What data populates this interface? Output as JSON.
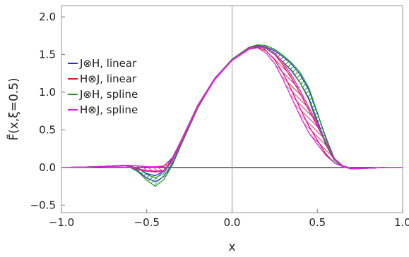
{
  "chart_data": {
    "type": "area",
    "title": "",
    "xlabel": "x",
    "ylabel": "F̃(x,ξ=0.5)",
    "xlim": [
      -1.0,
      1.0
    ],
    "ylim": [
      -0.6,
      2.15
    ],
    "xticks": [
      -1.0,
      -0.5,
      0.0,
      0.5,
      1.0
    ],
    "xtick_labels": [
      "−1.0",
      "−0.5",
      "0.0",
      "0.5",
      "1.0"
    ],
    "yticks": [
      -0.5,
      0.0,
      0.5,
      1.0,
      1.5,
      2.0
    ],
    "ytick_labels": [
      "−0.5",
      "0.0",
      "0.5",
      "1.0",
      "1.5",
      "2.0"
    ],
    "legend_position": "left",
    "grid": false,
    "series": [
      {
        "name": "J⊗H, linear",
        "color": "#2B2BCC",
        "x": [
          -1.0,
          -0.8,
          -0.62,
          -0.55,
          -0.5,
          -0.45,
          -0.4,
          -0.35,
          -0.3,
          -0.2,
          -0.1,
          0.0,
          0.1,
          0.15,
          0.2,
          0.25,
          0.3,
          0.35,
          0.4,
          0.45,
          0.5,
          0.55,
          0.6,
          0.65,
          0.7,
          0.8,
          0.9,
          1.0
        ],
        "lower": [
          0.0,
          0.01,
          0.03,
          -0.05,
          -0.14,
          -0.19,
          -0.12,
          0.05,
          0.3,
          0.8,
          1.18,
          1.43,
          1.59,
          1.62,
          1.58,
          1.5,
          1.4,
          1.28,
          1.12,
          0.92,
          0.62,
          0.32,
          0.09,
          0.01,
          -0.02,
          -0.01,
          0.0,
          0.0
        ],
        "upper": [
          0.0,
          0.01,
          0.03,
          -0.01,
          -0.08,
          -0.11,
          -0.05,
          0.12,
          0.35,
          0.83,
          1.19,
          1.43,
          1.59,
          1.62,
          1.6,
          1.55,
          1.47,
          1.37,
          1.23,
          1.03,
          0.72,
          0.4,
          0.12,
          0.02,
          -0.01,
          -0.01,
          0.0,
          0.0
        ]
      },
      {
        "name": "H⊗J, linear",
        "color": "#CC1E1E",
        "x": [
          -1.0,
          -0.8,
          -0.62,
          -0.55,
          -0.5,
          -0.45,
          -0.4,
          -0.35,
          -0.3,
          -0.2,
          -0.1,
          0.0,
          0.1,
          0.15,
          0.2,
          0.25,
          0.3,
          0.35,
          0.4,
          0.45,
          0.5,
          0.55,
          0.6,
          0.65,
          0.7,
          0.8,
          0.9,
          1.0
        ],
        "lower": [
          0.0,
          0.01,
          0.02,
          -0.02,
          -0.04,
          -0.05,
          -0.04,
          0.1,
          0.33,
          0.82,
          1.18,
          1.43,
          1.58,
          1.6,
          1.55,
          1.43,
          1.25,
          1.02,
          0.78,
          0.55,
          0.36,
          0.18,
          0.06,
          0.01,
          -0.02,
          -0.01,
          0.0,
          0.0
        ],
        "upper": [
          0.0,
          0.01,
          0.03,
          0.02,
          0.01,
          0.0,
          0.01,
          0.13,
          0.35,
          0.83,
          1.19,
          1.43,
          1.59,
          1.61,
          1.58,
          1.5,
          1.36,
          1.18,
          0.98,
          0.76,
          0.55,
          0.32,
          0.12,
          0.02,
          -0.01,
          -0.01,
          0.0,
          0.0
        ]
      },
      {
        "name": "J⊗H, spline",
        "color": "#1E9E1E",
        "x": [
          -1.0,
          -0.8,
          -0.62,
          -0.55,
          -0.5,
          -0.45,
          -0.4,
          -0.35,
          -0.3,
          -0.2,
          -0.1,
          0.0,
          0.1,
          0.15,
          0.2,
          0.25,
          0.3,
          0.35,
          0.4,
          0.45,
          0.5,
          0.55,
          0.6,
          0.65,
          0.7,
          0.8,
          0.9,
          1.0
        ],
        "lower": [
          0.0,
          0.01,
          0.03,
          -0.06,
          -0.17,
          -0.25,
          -0.16,
          0.03,
          0.29,
          0.79,
          1.18,
          1.43,
          1.58,
          1.61,
          1.58,
          1.5,
          1.4,
          1.29,
          1.12,
          0.9,
          0.58,
          0.3,
          0.09,
          0.01,
          -0.02,
          -0.01,
          0.0,
          0.0
        ],
        "upper": [
          0.0,
          0.01,
          0.03,
          -0.01,
          -0.09,
          -0.14,
          -0.08,
          0.1,
          0.34,
          0.83,
          1.19,
          1.44,
          1.6,
          1.63,
          1.62,
          1.57,
          1.49,
          1.39,
          1.26,
          1.06,
          0.73,
          0.38,
          0.12,
          0.02,
          -0.01,
          -0.01,
          0.0,
          0.0
        ]
      },
      {
        "name": "H⊗J, spline",
        "color": "#E21EE2",
        "x": [
          -1.0,
          -0.8,
          -0.62,
          -0.55,
          -0.5,
          -0.45,
          -0.4,
          -0.35,
          -0.3,
          -0.2,
          -0.1,
          0.0,
          0.1,
          0.15,
          0.2,
          0.25,
          0.3,
          0.35,
          0.4,
          0.45,
          0.5,
          0.55,
          0.6,
          0.65,
          0.7,
          0.8,
          0.9,
          1.0
        ],
        "lower": [
          0.0,
          0.01,
          0.02,
          -0.03,
          -0.05,
          -0.06,
          -0.05,
          0.09,
          0.32,
          0.81,
          1.17,
          1.42,
          1.57,
          1.59,
          1.52,
          1.38,
          1.17,
          0.92,
          0.68,
          0.46,
          0.31,
          0.16,
          0.06,
          0.01,
          -0.02,
          -0.01,
          0.0,
          0.0
        ],
        "upper": [
          0.0,
          0.01,
          0.03,
          0.02,
          0.01,
          0.01,
          0.02,
          0.13,
          0.35,
          0.83,
          1.19,
          1.43,
          1.59,
          1.61,
          1.59,
          1.52,
          1.39,
          1.22,
          1.02,
          0.8,
          0.58,
          0.34,
          0.12,
          0.02,
          -0.01,
          -0.01,
          0.0,
          0.0
        ]
      }
    ]
  }
}
